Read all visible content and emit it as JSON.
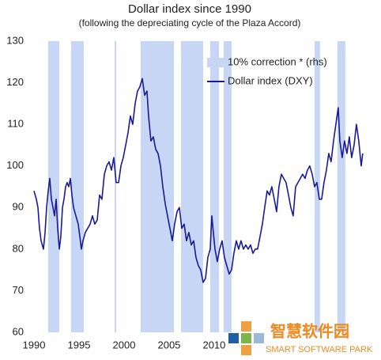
{
  "chart_data": {
    "type": "line",
    "title": "Dollar index since 1990",
    "subtitle": "(following the depreciating cycle of the Plaza Accord)",
    "xlim": [
      1990,
      2026.5
    ],
    "xticks": [
      1990,
      1995,
      2000,
      2005,
      2010
    ],
    "ylim": [
      60,
      130
    ],
    "yticks": [
      60,
      70,
      80,
      90,
      100,
      110,
      120,
      130
    ],
    "corrections_name": "10% correction * (rhs)",
    "corrections_color": "#c6d6f4",
    "corrections": [
      [
        1991.58,
        1992.81
      ],
      [
        1994.12,
        1995.53
      ],
      [
        1998.95,
        1999.12
      ],
      [
        2001.84,
        2005.53
      ],
      [
        2006.32,
        2008.77
      ],
      [
        2009.56,
        2010.53
      ],
      [
        2011.05,
        2011.93
      ],
      [
        2021.14,
        2021.75
      ],
      [
        2023.68,
        2024.56
      ]
    ],
    "x": [
      1990.0,
      1990.26,
      1990.44,
      1990.61,
      1990.79,
      1991.05,
      1991.23,
      1991.4,
      1991.58,
      1991.75,
      1991.93,
      1992.11,
      1992.28,
      1992.46,
      1992.63,
      1992.81,
      1992.98,
      1993.16,
      1993.33,
      1993.51,
      1993.68,
      1993.86,
      1994.04,
      1994.21,
      1994.39,
      1994.65,
      1994.91,
      1995.09,
      1995.26,
      1995.44,
      1995.7,
      1995.96,
      1996.23,
      1996.49,
      1996.75,
      1997.02,
      1997.28,
      1997.54,
      1997.81,
      1998.07,
      1998.33,
      1998.6,
      1998.86,
      1999.12,
      1999.39,
      1999.65,
      1999.91,
      2000.18,
      2000.44,
      2000.7,
      2000.96,
      2001.23,
      2001.49,
      2001.75,
      2002.02,
      2002.28,
      2002.54,
      2002.72,
      2002.98,
      2003.25,
      2003.51,
      2003.77,
      2004.04,
      2004.3,
      2004.56,
      2004.82,
      2005.09,
      2005.35,
      2005.61,
      2005.88,
      2006.14,
      2006.4,
      2006.67,
      2006.93,
      2007.19,
      2007.46,
      2007.72,
      2007.98,
      2008.25,
      2008.51,
      2008.77,
      2009.04,
      2009.3,
      2009.56,
      2009.74,
      2009.91,
      2010.09,
      2010.35,
      2010.61,
      2010.88,
      2011.14,
      2011.4,
      2011.67,
      2011.93,
      2012.19,
      2012.46,
      2012.72,
      2012.98,
      2013.25,
      2013.51,
      2013.77,
      2014.04,
      2014.3,
      2014.56,
      2014.82,
      2015.09,
      2015.35,
      2015.61,
      2015.88,
      2016.14,
      2016.4,
      2016.67,
      2016.93,
      2017.19,
      2017.46,
      2017.72,
      2017.98,
      2018.25,
      2018.51,
      2018.77,
      2019.04,
      2019.3,
      2019.56,
      2019.82,
      2020.09,
      2020.35,
      2020.61,
      2020.88,
      2021.14,
      2021.4,
      2021.67,
      2021.93,
      2022.19,
      2022.46,
      2022.72,
      2022.98,
      2023.25,
      2023.51,
      2023.77,
      2023.95,
      2024.21,
      2024.47,
      2024.74,
      2025.0,
      2025.26,
      2025.53,
      2025.79,
      2026.05,
      2026.32,
      2026.49
    ],
    "series": [
      {
        "name": "Dollar index (DXY)",
        "color": "#1a1a96",
        "values": [
          94,
          92,
          90,
          85,
          82,
          80,
          84,
          90,
          94,
          97,
          92,
          90,
          88,
          92,
          85,
          80,
          83,
          90,
          92,
          95,
          96,
          95,
          97,
          93,
          90,
          88,
          86,
          83,
          80,
          82,
          84,
          85,
          86,
          88,
          86,
          87,
          93,
          92,
          98,
          100,
          101,
          99,
          102,
          96,
          96,
          100,
          102,
          105,
          108,
          112,
          110,
          115,
          118,
          119,
          121,
          117,
          118,
          112,
          106,
          107,
          104,
          103,
          100,
          95,
          91,
          88,
          85,
          82,
          86,
          89,
          90,
          85,
          86,
          82,
          84,
          81,
          82,
          78,
          76,
          75,
          72,
          73,
          78,
          80,
          88,
          84,
          80,
          77,
          80,
          82,
          78,
          76,
          74,
          75,
          79,
          82,
          80,
          82,
          80,
          81,
          80,
          81,
          79,
          80,
          80,
          83,
          86,
          90,
          94,
          93,
          95,
          92,
          89,
          95,
          98,
          97,
          96,
          93,
          90,
          88,
          95,
          96,
          97,
          98,
          97,
          99,
          100,
          98,
          95,
          96,
          92,
          92,
          96,
          99,
          103,
          101,
          106,
          110,
          114,
          106,
          102,
          106,
          103,
          107,
          102,
          105,
          110,
          106,
          100,
          103
        ]
      }
    ]
  },
  "watermark": {
    "title": "智慧软件园",
    "subtitle": "SMART SOFTWARE PARK"
  }
}
